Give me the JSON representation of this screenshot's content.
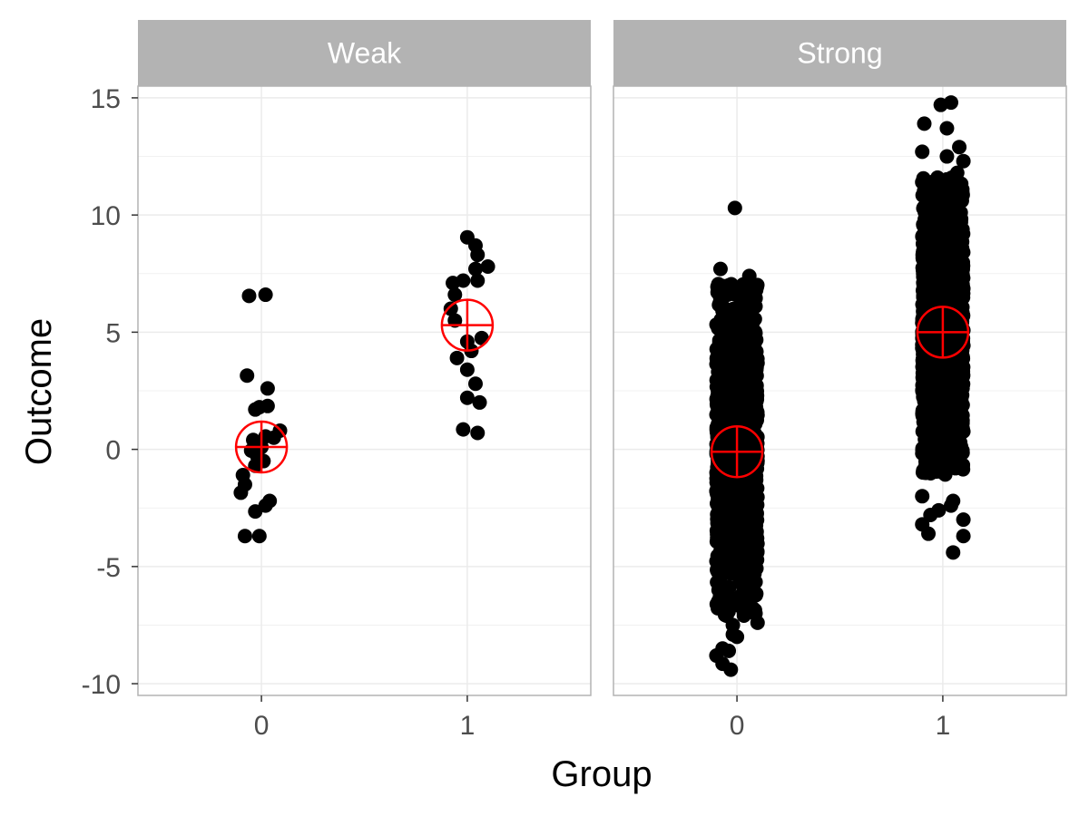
{
  "chart_data": {
    "type": "scatter",
    "xlabel": "Group",
    "ylabel": "Outcome",
    "x_categories": [
      "0",
      "1"
    ],
    "ylim": [
      -10.5,
      15.5
    ],
    "y_ticks": [
      -10,
      -5,
      0,
      5,
      10,
      15
    ],
    "y_tick_labels": [
      "-10",
      "-5",
      "0",
      "5",
      "10",
      "15"
    ],
    "grid": true,
    "colors": {
      "points": "#000000",
      "mean_marker": "#ff0000",
      "strip": "#b3b3b3",
      "strip_text": "#ffffff",
      "grid": "#ebebeb"
    },
    "panels": [
      {
        "label": "Weak",
        "groups": [
          {
            "x": "0",
            "mean": 0.1,
            "points": [
              [
                -0.06,
                6.55
              ],
              [
                0.02,
                6.6
              ],
              [
                -0.07,
                3.15
              ],
              [
                0.03,
                2.6
              ],
              [
                -0.03,
                1.7
              ],
              [
                0.03,
                1.85
              ],
              [
                -0.01,
                1.8
              ],
              [
                0.09,
                0.8
              ],
              [
                0.06,
                0.5
              ],
              [
                0.02,
                0.55
              ],
              [
                -0.04,
                0.4
              ],
              [
                0.0,
                0.1
              ],
              [
                -0.05,
                -0.05
              ],
              [
                -0.02,
                -0.3
              ],
              [
                0.01,
                -0.5
              ],
              [
                -0.03,
                -0.7
              ],
              [
                -0.09,
                -1.1
              ],
              [
                -0.08,
                -1.5
              ],
              [
                -0.1,
                -1.85
              ],
              [
                0.04,
                -2.2
              ],
              [
                0.02,
                -2.4
              ],
              [
                -0.03,
                -2.65
              ],
              [
                -0.08,
                -3.7
              ],
              [
                -0.01,
                -3.7
              ]
            ]
          },
          {
            "x": "1",
            "mean": 5.3,
            "points": [
              [
                0.0,
                9.05
              ],
              [
                0.04,
                8.7
              ],
              [
                0.05,
                8.3
              ],
              [
                0.1,
                7.8
              ],
              [
                0.04,
                7.7
              ],
              [
                -0.07,
                7.1
              ],
              [
                -0.02,
                7.2
              ],
              [
                0.05,
                7.2
              ],
              [
                -0.06,
                6.6
              ],
              [
                -0.08,
                6.0
              ],
              [
                -0.06,
                5.5
              ],
              [
                0.0,
                4.6
              ],
              [
                0.07,
                4.75
              ],
              [
                0.02,
                4.2
              ],
              [
                -0.05,
                3.9
              ],
              [
                0.0,
                3.4
              ],
              [
                0.04,
                2.8
              ],
              [
                0.0,
                2.2
              ],
              [
                0.06,
                2.0
              ],
              [
                -0.02,
                0.85
              ],
              [
                0.05,
                0.7
              ]
            ]
          }
        ]
      },
      {
        "label": "Strong",
        "groups": [
          {
            "x": "0",
            "mean": -0.1,
            "dense_range": [
              -6.5,
              6.5
            ],
            "points": [
              [
                -0.01,
                10.3
              ],
              [
                -0.08,
                7.7
              ],
              [
                0.06,
                7.4
              ],
              [
                0.06,
                6.5
              ],
              [
                -0.05,
                6.6
              ],
              [
                0.09,
                6.1
              ],
              [
                0.03,
                6.0
              ],
              [
                -0.07,
                5.9
              ],
              [
                0.08,
                -6.8
              ],
              [
                0.09,
                -7.0
              ],
              [
                0.1,
                -7.4
              ],
              [
                -0.05,
                -7.1
              ],
              [
                -0.02,
                -7.5
              ],
              [
                0.0,
                -8.0
              ],
              [
                -0.07,
                -8.5
              ],
              [
                -0.04,
                -8.6
              ],
              [
                -0.1,
                -8.8
              ],
              [
                -0.07,
                -9.15
              ],
              [
                -0.03,
                -9.4
              ],
              [
                -0.02,
                -7.9
              ]
            ]
          },
          {
            "x": "1",
            "mean": 5.0,
            "dense_range": [
              -0.5,
              11.0
            ],
            "points": [
              [
                -0.01,
                14.7
              ],
              [
                0.04,
                14.8
              ],
              [
                -0.09,
                13.9
              ],
              [
                0.02,
                13.7
              ],
              [
                0.08,
                12.9
              ],
              [
                -0.1,
                12.7
              ],
              [
                0.02,
                12.5
              ],
              [
                0.1,
                12.3
              ],
              [
                0.07,
                11.8
              ],
              [
                -0.1,
                11.4
              ],
              [
                0.06,
                11.5
              ],
              [
                -0.1,
                -2.0
              ],
              [
                0.05,
                -2.2
              ],
              [
                0.04,
                -2.4
              ],
              [
                -0.06,
                -2.8
              ],
              [
                -0.02,
                -2.6
              ],
              [
                -0.1,
                -3.2
              ],
              [
                -0.07,
                -3.6
              ],
              [
                0.1,
                -3.0
              ],
              [
                0.1,
                -3.7
              ],
              [
                0.05,
                -4.4
              ]
            ]
          }
        ]
      }
    ]
  }
}
